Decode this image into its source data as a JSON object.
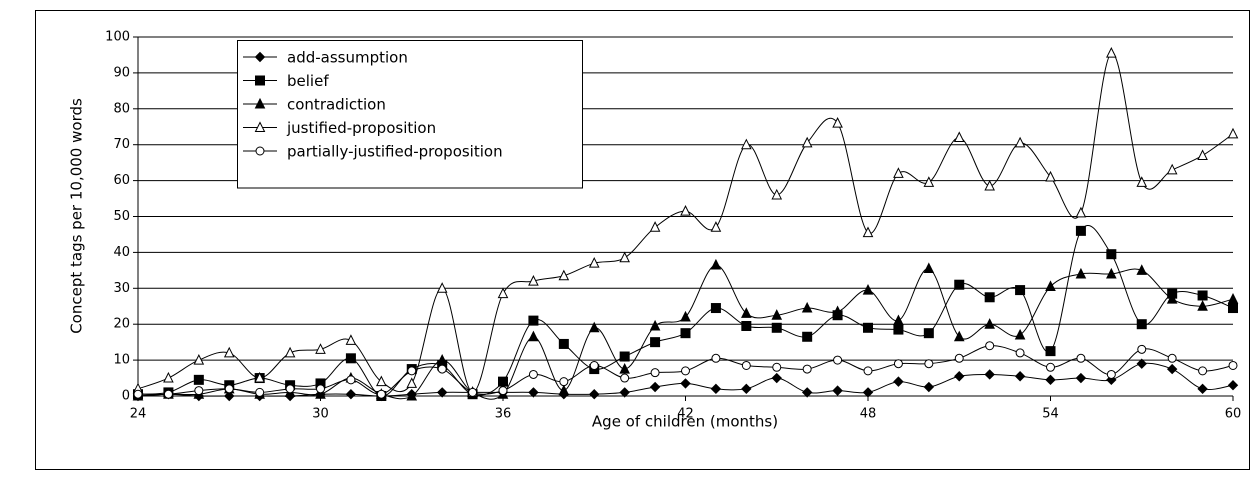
{
  "chart_data": {
    "type": "line",
    "x_label": "Age of children (months)",
    "y_label": "Concept tags per 10,000 words",
    "x": [
      24,
      25,
      26,
      27,
      28,
      29,
      30,
      31,
      32,
      33,
      34,
      35,
      36,
      37,
      38,
      39,
      40,
      41,
      42,
      43,
      44,
      45,
      46,
      47,
      48,
      49,
      50,
      51,
      52,
      53,
      54,
      55,
      56,
      57,
      58,
      59,
      60
    ],
    "xlim": [
      24,
      60
    ],
    "xticks": [
      24,
      30,
      36,
      42,
      48,
      54,
      60
    ],
    "ylim": [
      0,
      100
    ],
    "yticks": [
      0,
      10,
      20,
      30,
      40,
      50,
      60,
      70,
      80,
      90,
      100
    ],
    "grid": true,
    "legend": "upper left",
    "smooth": true,
    "series": [
      {
        "name": "add-assumption",
        "color": "#000000",
        "marker": "diamond",
        "values": [
          0,
          0.5,
          0,
          0,
          0,
          0,
          0.5,
          0.5,
          0,
          0.5,
          1,
          1,
          1,
          1,
          0.5,
          0.5,
          1,
          2.5,
          3.5,
          2,
          2,
          5,
          1,
          1.5,
          1,
          4,
          2.5,
          5.5,
          6,
          5.5,
          4.5,
          5,
          4.5,
          9,
          7.5,
          2,
          3
        ]
      },
      {
        "name": "belief",
        "color": "#000000",
        "marker": "square",
        "values": [
          0.5,
          1,
          4.5,
          3,
          5,
          3,
          3.5,
          10.5,
          0,
          7.5,
          8.5,
          0.5,
          4,
          21,
          14.5,
          7.5,
          11,
          15,
          17.5,
          24.5,
          19.5,
          19,
          16.5,
          22.5,
          19,
          18.5,
          17.5,
          31,
          27.5,
          29.5,
          12.5,
          46,
          39.5,
          20,
          28.5,
          28,
          24.5
        ]
      },
      {
        "name": "contradiction",
        "color": "#000000",
        "marker": "triangle",
        "values": [
          0,
          0.5,
          0.5,
          2,
          0.5,
          1,
          0.5,
          5,
          0.5,
          0,
          10,
          1,
          0.5,
          16.5,
          1.5,
          19,
          7.5,
          19.5,
          22,
          36.5,
          23,
          22.5,
          24.5,
          23.5,
          29.5,
          21,
          35.5,
          16.5,
          20,
          17,
          30.5,
          34,
          34,
          35,
          27,
          25,
          27
        ]
      },
      {
        "name": "justified-proposition",
        "color": "#000000",
        "marker": "open-triangle",
        "values": [
          2,
          5,
          10,
          12,
          5,
          12,
          13,
          15.5,
          4,
          3.5,
          30,
          1,
          28.5,
          32,
          33.5,
          37,
          38.5,
          47,
          51.5,
          47,
          70,
          56,
          70.5,
          76,
          45.5,
          62,
          59.5,
          72,
          58.5,
          70.5,
          61,
          51,
          95.5,
          59.5,
          63,
          67,
          73
        ]
      },
      {
        "name": "partially-justified-proposition",
        "color": "#000000",
        "marker": "open-circle",
        "values": [
          0.5,
          0.5,
          1.5,
          2,
          1,
          2,
          2,
          4.5,
          0.5,
          7,
          7.5,
          1,
          1.5,
          6,
          4,
          8.5,
          5,
          6.5,
          7,
          10.5,
          8.5,
          8,
          7.5,
          10,
          7,
          9,
          9,
          10.5,
          14,
          12,
          8,
          10.5,
          6,
          13,
          10.5,
          7,
          8.5
        ]
      }
    ]
  }
}
